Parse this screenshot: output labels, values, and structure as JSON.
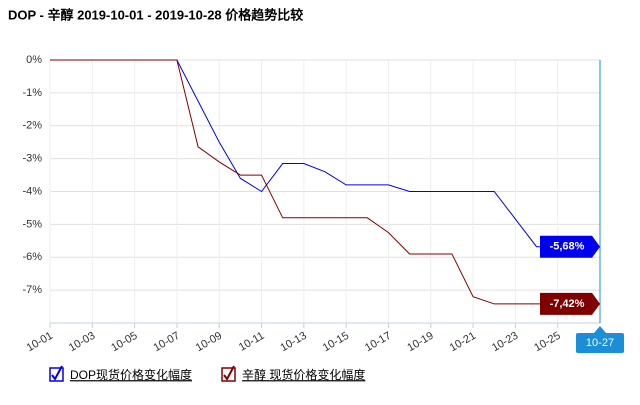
{
  "chart_data": {
    "type": "line",
    "title": "DOP - 辛醇 2019-10-01 - 2019-10-28 价格趋势比较",
    "categories": [
      "10-01",
      null,
      "10-03",
      null,
      "10-05",
      null,
      "10-07",
      null,
      "10-09",
      null,
      "10-11",
      null,
      "10-13",
      null,
      "10-15",
      null,
      "10-17",
      null,
      "10-19",
      null,
      "10-21",
      null,
      "10-23",
      null,
      "10-25",
      null,
      "10-27"
    ],
    "series": [
      {
        "name": "DOP现货价格变化幅度",
        "color": "#0000ee",
        "values": [
          0,
          0,
          0,
          0,
          0,
          0,
          0,
          -1.25,
          -2.5,
          -3.6,
          -4.0,
          -3.15,
          -3.15,
          -3.4,
          -3.8,
          -3.8,
          -3.8,
          -4.0,
          -4.0,
          -4.0,
          -4.0,
          -4.0,
          -4.84,
          -5.68,
          -5.68,
          -5.68,
          -5.68
        ],
        "value_labels": [
          null,
          null,
          null,
          null,
          null,
          null,
          null,
          null,
          null,
          null,
          null,
          null,
          null,
          null,
          null,
          null,
          null,
          null,
          null,
          null,
          null,
          null,
          null,
          null,
          null,
          null,
          "-5,68%"
        ]
      },
      {
        "name": "辛醇 现货价格变化幅度",
        "color": "#800000",
        "values": [
          0,
          0,
          0,
          0,
          0,
          0,
          0,
          -2.64,
          -3.1,
          -3.5,
          -3.5,
          -4.8,
          -4.8,
          -4.8,
          -4.8,
          -4.8,
          -5.25,
          -5.9,
          -5.9,
          -5.9,
          -7.2,
          -7.42,
          -7.42,
          -7.42,
          -7.42,
          -7.42,
          -7.42
        ],
        "value_labels": [
          null,
          null,
          null,
          null,
          null,
          null,
          null,
          null,
          null,
          null,
          null,
          null,
          null,
          null,
          null,
          null,
          null,
          null,
          null,
          null,
          null,
          null,
          null,
          null,
          null,
          null,
          "-7,42%"
        ]
      }
    ],
    "ylim": [
      -8,
      0
    ],
    "yticks": [
      {
        "value": 0,
        "label": "0%"
      },
      {
        "value": -1,
        "label": "-1%"
      },
      {
        "value": -2,
        "label": "-2%"
      },
      {
        "value": -3,
        "label": "-3%"
      },
      {
        "value": -4,
        "label": "-4%"
      },
      {
        "value": -5,
        "label": "-5%"
      },
      {
        "value": -6,
        "label": "-6%"
      },
      {
        "value": -7,
        "label": "-7%"
      }
    ],
    "grid": true
  }
}
